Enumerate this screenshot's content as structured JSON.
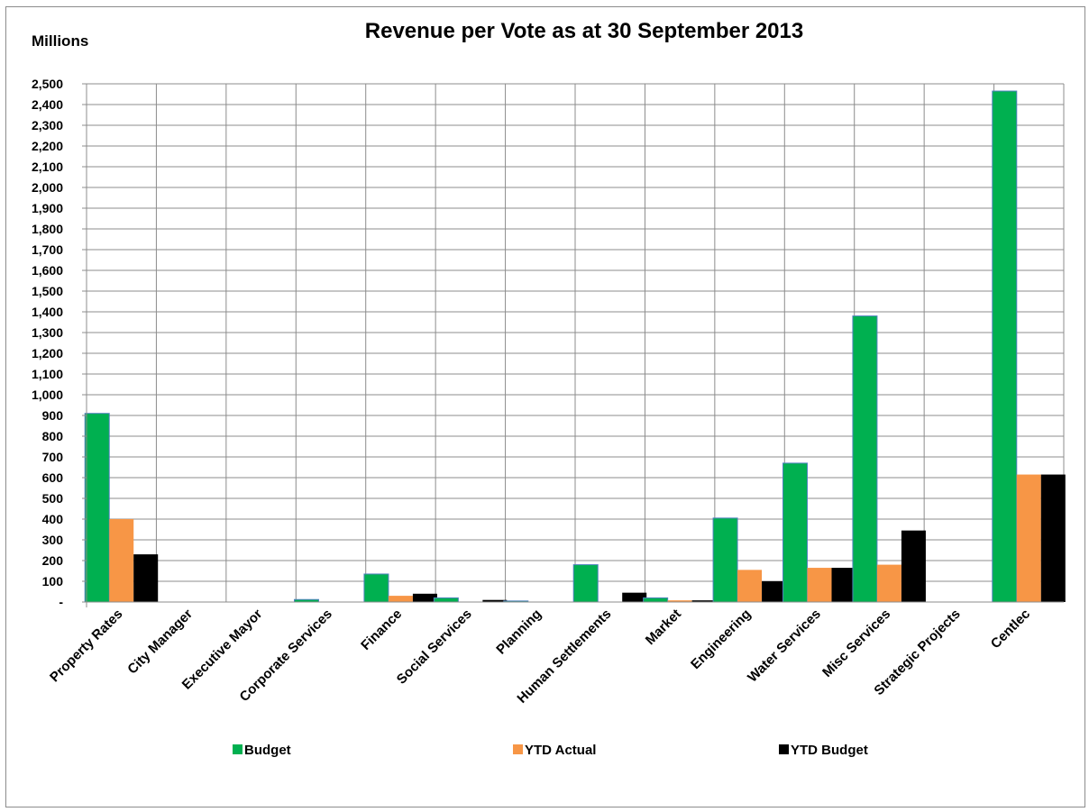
{
  "chart_data": {
    "type": "bar",
    "title": "Revenue per Vote as at 30 September 2013",
    "unit_label": "Millions",
    "xlabel": "",
    "ylabel": "",
    "ylim": [
      0,
      2500
    ],
    "y_tick_step": 100,
    "y_zero_label": "-",
    "grid": true,
    "legend_position": "bottom",
    "categories": [
      "Property Rates",
      "City Manager",
      "Executive Mayor",
      "Corporate Services",
      "Finance",
      "Social Services",
      "Planning",
      "Human Settlements",
      "Market",
      "Engineering",
      "Water Services",
      "Misc Services",
      "Strategic Projects",
      "Centlec"
    ],
    "series": [
      {
        "name": "Budget",
        "color": "#00B050",
        "values": [
          910,
          0,
          0,
          12,
          135,
          20,
          5,
          180,
          20,
          405,
          670,
          1380,
          0,
          2465
        ]
      },
      {
        "name": "YTD Actual",
        "color": "#F79646",
        "values": [
          400,
          0,
          0,
          0,
          30,
          0,
          0,
          0,
          8,
          155,
          165,
          180,
          0,
          615
        ]
      },
      {
        "name": "YTD Budget",
        "color": "#000000",
        "values": [
          230,
          0,
          0,
          0,
          40,
          10,
          0,
          45,
          8,
          100,
          165,
          345,
          0,
          615
        ]
      }
    ]
  }
}
